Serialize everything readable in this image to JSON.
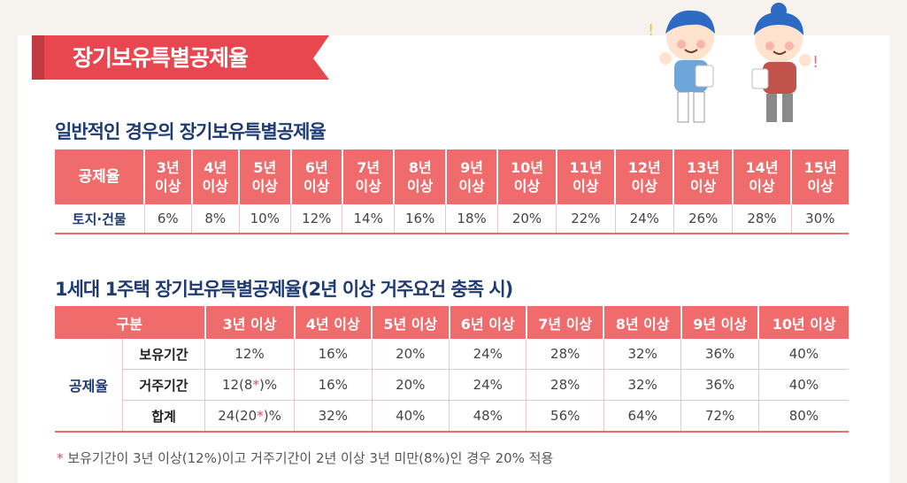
{
  "banner": {
    "title": "장기보유특별공제율"
  },
  "general": {
    "title": "일반적인 경우의 장기보유특별공제율",
    "header_label": "공제율",
    "periods": [
      [
        "3년",
        "이상"
      ],
      [
        "4년",
        "이상"
      ],
      [
        "5년",
        "이상"
      ],
      [
        "6년",
        "이상"
      ],
      [
        "7년",
        "이상"
      ],
      [
        "8년",
        "이상"
      ],
      [
        "9년",
        "이상"
      ],
      [
        "10년",
        "이상"
      ],
      [
        "11년",
        "이상"
      ],
      [
        "12년",
        "이상"
      ],
      [
        "13년",
        "이상"
      ],
      [
        "14년",
        "이상"
      ],
      [
        "15년",
        "이상"
      ]
    ],
    "row_label": "토지·건물",
    "rates": [
      "6%",
      "8%",
      "10%",
      "12%",
      "14%",
      "16%",
      "18%",
      "20%",
      "22%",
      "24%",
      "26%",
      "28%",
      "30%"
    ]
  },
  "one_house": {
    "title": "1세대 1주택 장기보유특별공제율(2년 이상 거주요건 충족 시)",
    "header_label": "구분",
    "periods": [
      "3년 이상",
      "4년 이상",
      "5년 이상",
      "6년 이상",
      "7년 이상",
      "8년 이상",
      "9년 이상",
      "10년 이상"
    ],
    "group_label": "공제율",
    "rows": [
      {
        "label": "보유기간",
        "values": [
          "12%",
          "16%",
          "20%",
          "24%",
          "28%",
          "32%",
          "36%",
          "40%"
        ]
      },
      {
        "label": "거주기간",
        "first_prefix": "12(8",
        "first_suffix": ")%",
        "values": [
          "16%",
          "20%",
          "24%",
          "28%",
          "32%",
          "36%",
          "40%"
        ]
      },
      {
        "label": "합계",
        "first_prefix": "24(20",
        "first_suffix": ")%",
        "values": [
          "32%",
          "40%",
          "48%",
          "56%",
          "64%",
          "72%",
          "80%"
        ]
      }
    ]
  },
  "footnote": {
    "mark": "*",
    "text": "보유기간이 3년 이상(12%)이고 거주기간이 2년 이상 3년 미만(8%)인 경우 20% 적용"
  },
  "colors": {
    "accent": "#f06b6b",
    "navy": "#1f3b73",
    "banner": "#e8474f"
  }
}
